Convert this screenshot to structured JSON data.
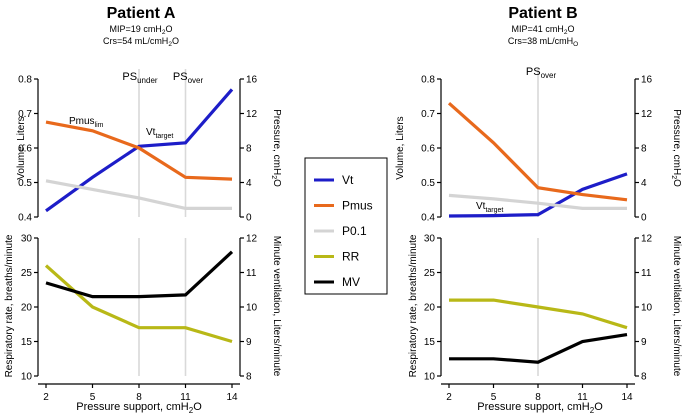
{
  "chart_data": [
    {
      "type": "line",
      "id": "A-top",
      "panel_title": "Patient A",
      "subtitle_1_prefix": "MIP=19 cmH",
      "subtitle_1_sub": "2",
      "subtitle_1_suffix": "O",
      "subtitle_2_prefix": "Crs=54 mL/cmH",
      "subtitle_2_sub": "2",
      "subtitle_2_suffix": "O",
      "x": [
        2,
        5,
        8,
        11,
        14
      ],
      "ylabel_left": "Volume, Liters",
      "ylim_left": [
        0.4,
        0.8
      ],
      "yticks_left": [
        "0.4",
        "0.5",
        "0.6",
        "0.7",
        "0.8"
      ],
      "ylabel_right_prefix": "Pressure, cmH",
      "ylabel_right_sub": "2",
      "ylabel_right_suffix": "O",
      "ylim_right": [
        0,
        16
      ],
      "yticks_right": [
        "0",
        "4",
        "8",
        "12",
        "16"
      ],
      "vlines": [
        8,
        11
      ],
      "vline_labels": [
        {
          "x": 8,
          "main": "PS",
          "sub": "under"
        },
        {
          "x": 11,
          "main": "PS",
          "sub": "over"
        }
      ],
      "series": [
        {
          "name": "Vt",
          "axis": "left",
          "color": "#1d1dc8",
          "values": [
            0.418,
            0.515,
            0.605,
            0.615,
            0.77
          ]
        },
        {
          "name": "Pmus",
          "axis": "right",
          "color": "#e8691c",
          "values": [
            11.0,
            10.0,
            8.0,
            4.6,
            4.4
          ]
        },
        {
          "name": "P0.1",
          "axis": "right",
          "color": "#d4d4d4",
          "values": [
            4.2,
            3.2,
            2.2,
            1.0,
            1.0
          ]
        }
      ],
      "annotations": [
        {
          "main": "Pmus",
          "sub": "lim"
        },
        {
          "main": "Vt",
          "sub": "target"
        }
      ]
    },
    {
      "type": "line",
      "id": "A-bottom",
      "x": [
        2,
        5,
        8,
        11,
        14
      ],
      "xlabel_prefix": "Pressure support, cmH",
      "xlabel_sub": "2",
      "xlabel_suffix": "O",
      "xticks": [
        "2",
        "5",
        "8",
        "11",
        "14"
      ],
      "ylabel_left": "Respiratory rate, breaths/minute",
      "ylim_left": [
        10,
        30
      ],
      "yticks_left": [
        "10",
        "15",
        "20",
        "25",
        "30"
      ],
      "ylabel_right": "Minute ventilation, Liters/minute",
      "ylim_right": [
        8,
        12
      ],
      "yticks_right": [
        "8",
        "9",
        "10",
        "11",
        "12"
      ],
      "vlines": [
        8,
        11
      ],
      "series": [
        {
          "name": "RR",
          "axis": "left",
          "color": "#b8b817",
          "values": [
            26,
            20,
            17,
            17,
            15
          ]
        },
        {
          "name": "MV",
          "axis": "right",
          "color": "#000000",
          "values": [
            10.7,
            10.3,
            10.3,
            10.35,
            11.6
          ]
        }
      ]
    },
    {
      "type": "line",
      "id": "B-top",
      "panel_title": "Patient B",
      "subtitle_1_prefix": "MIP=41 cmH",
      "subtitle_1_sub": "2",
      "subtitle_1_suffix": "O",
      "subtitle_2_prefix": "Crs=38 mL/cmH",
      "subtitle_2_sub": "2",
      "subtitle_2_suffix": "O",
      "x": [
        2,
        5,
        8,
        11,
        14
      ],
      "ylabel_left": "Volume, Liters",
      "ylim_left": [
        0.4,
        0.8
      ],
      "yticks_left": [
        "0.4",
        "0.5",
        "0.6",
        "0.7",
        "0.8"
      ],
      "ylabel_right_prefix": "Pressure, cmH",
      "ylabel_right_sub": "2",
      "ylabel_right_suffix": "O",
      "ylim_right": [
        0,
        16
      ],
      "yticks_right": [
        "0",
        "4",
        "8",
        "12",
        "16"
      ],
      "vlines": [
        8
      ],
      "vline_labels": [
        {
          "x": 8,
          "main": "PS",
          "sub": "over"
        }
      ],
      "series": [
        {
          "name": "Vt",
          "axis": "left",
          "color": "#1d1dc8",
          "values": [
            0.403,
            0.404,
            0.407,
            0.48,
            0.525
          ]
        },
        {
          "name": "Pmus",
          "axis": "right",
          "color": "#e8691c",
          "values": [
            13.2,
            8.6,
            3.4,
            2.6,
            2.0
          ]
        },
        {
          "name": "P0.1",
          "axis": "right",
          "color": "#d4d4d4",
          "values": [
            2.5,
            2.1,
            1.6,
            1.0,
            1.0
          ]
        }
      ],
      "annotations": [
        {
          "main": "Vt",
          "sub": "target"
        }
      ]
    },
    {
      "type": "line",
      "id": "B-bottom",
      "x": [
        2,
        5,
        8,
        11,
        14
      ],
      "xlabel_prefix": "Pressure support, cmH",
      "xlabel_sub": "2",
      "xlabel_suffix": "O",
      "xticks": [
        "2",
        "5",
        "8",
        "11",
        "14"
      ],
      "ylabel_left": "Respiratory rate, breaths/minute",
      "ylim_left": [
        10,
        30
      ],
      "yticks_left": [
        "10",
        "15",
        "20",
        "25",
        "30"
      ],
      "ylabel_right": "Minute ventilation, Liters/minute",
      "ylim_right": [
        8,
        12
      ],
      "yticks_right": [
        "8",
        "9",
        "10",
        "11",
        "12"
      ],
      "vlines": [
        8
      ],
      "series": [
        {
          "name": "RR",
          "axis": "left",
          "color": "#b8b817",
          "values": [
            21,
            21,
            20,
            19,
            17
          ]
        },
        {
          "name": "MV",
          "axis": "right",
          "color": "#000000",
          "values": [
            8.5,
            8.5,
            8.4,
            9.0,
            9.2
          ]
        }
      ]
    }
  ],
  "legend": [
    {
      "name": "Vt",
      "color": "#1d1dc8"
    },
    {
      "name": "Pmus",
      "color": "#e8691c"
    },
    {
      "name": "P0.1",
      "color": "#d4d4d4"
    },
    {
      "name": "RR",
      "color": "#b8b817"
    },
    {
      "name": "MV",
      "color": "#000000"
    }
  ]
}
